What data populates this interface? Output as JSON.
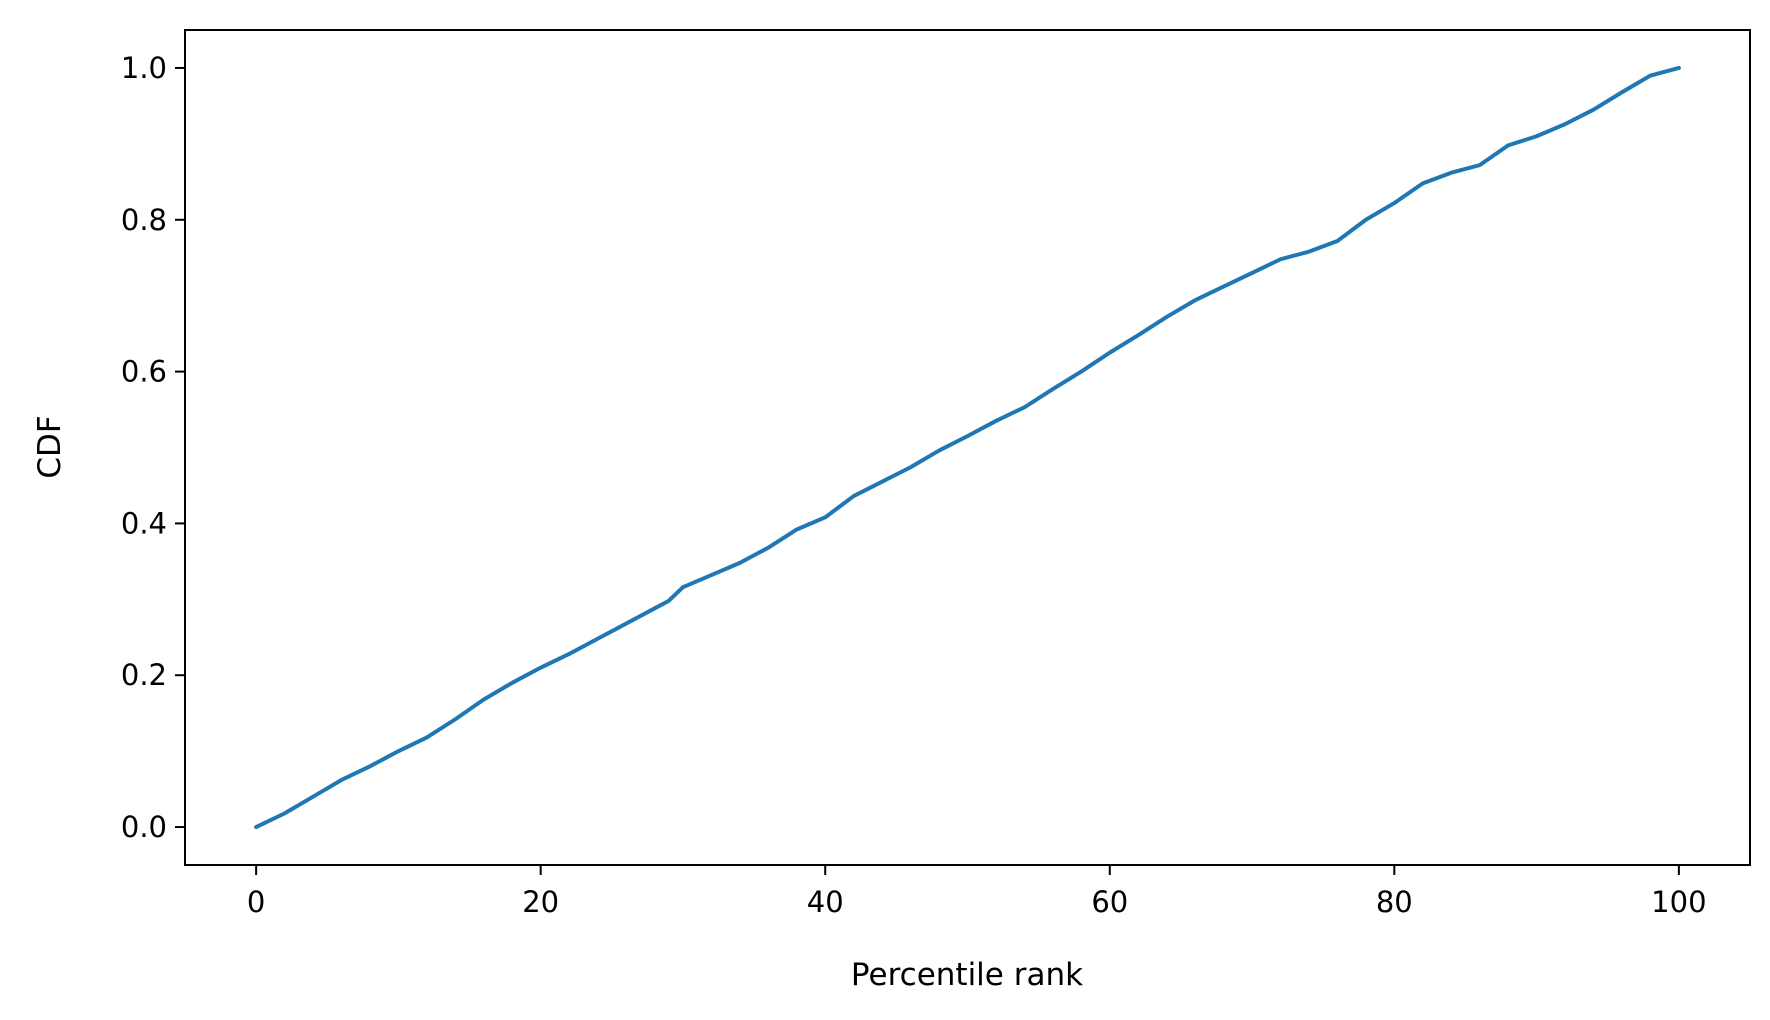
{
  "chart_data": {
    "type": "line",
    "title": "",
    "xlabel": "Percentile rank",
    "ylabel": "CDF",
    "xlim": [
      -5,
      105
    ],
    "ylim": [
      -0.05,
      1.05
    ],
    "x_ticks": [
      0,
      20,
      40,
      60,
      80,
      100
    ],
    "x_tick_labels": [
      "0",
      "20",
      "40",
      "60",
      "80",
      "100"
    ],
    "y_ticks": [
      0.0,
      0.2,
      0.4,
      0.6,
      0.8,
      1.0
    ],
    "y_tick_labels": [
      "0.0",
      "0.2",
      "0.4",
      "0.6",
      "0.8",
      "1.0"
    ],
    "grid": false,
    "legend": "none",
    "series_color": "#1f77b4",
    "series": [
      {
        "x": [
          0,
          2,
          4,
          6,
          8,
          10,
          12,
          14,
          16,
          18,
          20,
          22,
          24,
          26,
          28,
          29,
          30,
          32,
          34,
          36,
          38,
          40,
          42,
          44,
          46,
          48,
          50,
          52,
          54,
          56,
          58,
          60,
          62,
          64,
          66,
          68,
          70,
          72,
          74,
          76,
          78,
          80,
          82,
          84,
          86,
          88,
          90,
          92,
          94,
          96,
          98,
          100
        ],
        "values": [
          0.0,
          0.018,
          0.04,
          0.062,
          0.08,
          0.1,
          0.118,
          0.142,
          0.168,
          0.19,
          0.21,
          0.228,
          0.248,
          0.268,
          0.288,
          0.298,
          0.316,
          0.332,
          0.348,
          0.368,
          0.392,
          0.408,
          0.436,
          0.455,
          0.474,
          0.496,
          0.515,
          0.535,
          0.553,
          0.577,
          0.6,
          0.625,
          0.648,
          0.672,
          0.694,
          0.712,
          0.73,
          0.748,
          0.758,
          0.772,
          0.8,
          0.822,
          0.848,
          0.862,
          0.872,
          0.898,
          0.91,
          0.926,
          0.945,
          0.968,
          0.99,
          1.0
        ]
      }
    ]
  }
}
